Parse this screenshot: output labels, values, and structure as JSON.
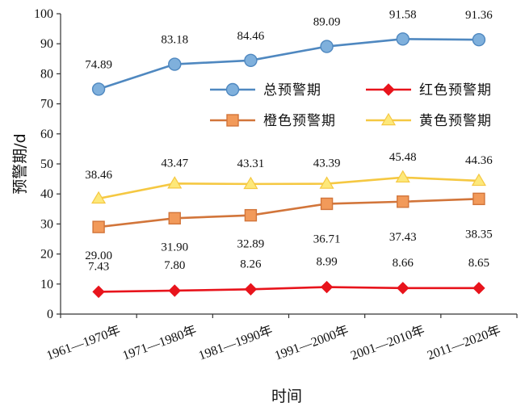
{
  "chart_data": {
    "type": "line",
    "categories": [
      "1961—1970年",
      "1971—1980年",
      "1981—1990年",
      "1991—2000年",
      "2001—2010年",
      "2011—2020年"
    ],
    "series": [
      {
        "name": "总预警期",
        "values": [
          74.89,
          83.18,
          84.46,
          89.09,
          91.58,
          91.36
        ],
        "color": "#4f88c0",
        "fill": "#7fb0dc",
        "marker": "circle"
      },
      {
        "name": "红色预警期",
        "values": [
          7.43,
          7.8,
          8.26,
          8.99,
          8.66,
          8.65
        ],
        "color": "#e8141c",
        "fill": "#e8141c",
        "marker": "diamond"
      },
      {
        "name": "橙色预警期",
        "values": [
          29.0,
          31.9,
          32.89,
          36.71,
          37.43,
          38.35
        ],
        "color": "#d2753a",
        "fill": "#f29a5a",
        "marker": "square"
      },
      {
        "name": "黄色预警期",
        "values": [
          38.46,
          43.47,
          43.31,
          43.39,
          45.48,
          44.36
        ],
        "color": "#f5c842",
        "fill": "#fde87a",
        "marker": "triangle"
      }
    ],
    "data_labels": [
      [
        "74.89",
        "83.18",
        "84.46",
        "89.09",
        "91.58",
        "91.36"
      ],
      [
        "7.43",
        "7.80",
        "8.26",
        "8.99",
        "8.66",
        "8.65"
      ],
      [
        "29.00",
        "31.90",
        "32.89",
        "36.71",
        "37.43",
        "38.35"
      ],
      [
        "38.46",
        "43.47",
        "43.31",
        "43.39",
        "45.48",
        "44.36"
      ]
    ],
    "xlabel": "时间",
    "ylabel": "预警期/d",
    "ylim": [
      0,
      100
    ],
    "yticks": [
      0,
      10,
      20,
      30,
      40,
      50,
      60,
      70,
      80,
      90,
      100
    ],
    "grid": false,
    "legend_placement": "upper-right"
  }
}
